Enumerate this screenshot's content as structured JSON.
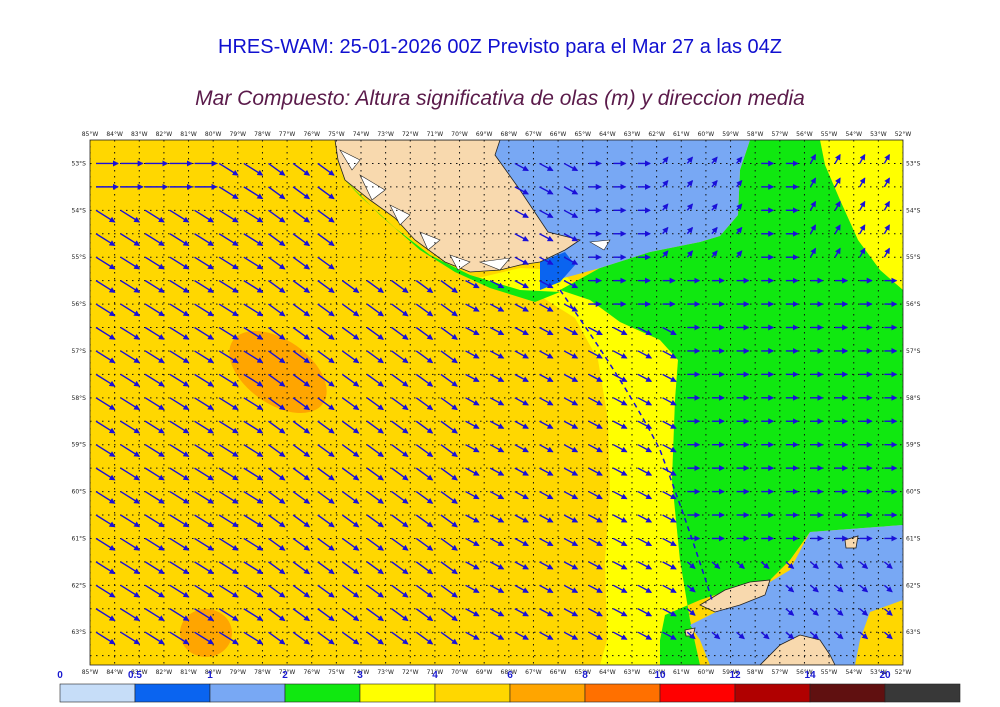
{
  "header": {
    "title": "HRES-WAM: 25-01-2026 00Z Previsto para el Mar 27 a las 04Z",
    "subtitle": "Mar Compuesto: Altura significativa de olas (m) y direccion media"
  },
  "map": {
    "lon_labels": [
      "85°W",
      "84°W",
      "83°W",
      "82°W",
      "81°W",
      "80°W",
      "79°W",
      "78°W",
      "77°W",
      "76°W",
      "75°W",
      "74°W",
      "73°W",
      "72°W",
      "71°W",
      "70°W",
      "69°W",
      "68°W",
      "67°W",
      "66°W",
      "65°W",
      "64°W",
      "63°W",
      "62°W",
      "61°W",
      "60°W",
      "59°W",
      "58°W",
      "57°W",
      "56°W",
      "55°W",
      "54°W",
      "53°W",
      "52°W"
    ],
    "lat_labels": [
      "53°S",
      "54°S",
      "55°S",
      "56°S",
      "57°S",
      "58°S",
      "59°S",
      "60°S",
      "61°S",
      "62°S",
      "63°S"
    ],
    "lon_range": [
      -85,
      -52
    ],
    "lat_range": [
      -52.5,
      -63.7
    ],
    "land_color": "#f8d9ae",
    "arrow_color": "#1a10d8"
  },
  "colorbar": {
    "labels": [
      "0",
      "0.5",
      "1",
      "2",
      "3",
      "4",
      "6",
      "8",
      "10",
      "12",
      "14",
      "20"
    ],
    "colors": [
      "#c6ddf8",
      "#0a64f0",
      "#78a8f4",
      "#10e810",
      "#ffff00",
      "#ffd700",
      "#ffa500",
      "#ff7000",
      "#ff0000",
      "#b00000",
      "#601010",
      "#383838"
    ]
  }
}
